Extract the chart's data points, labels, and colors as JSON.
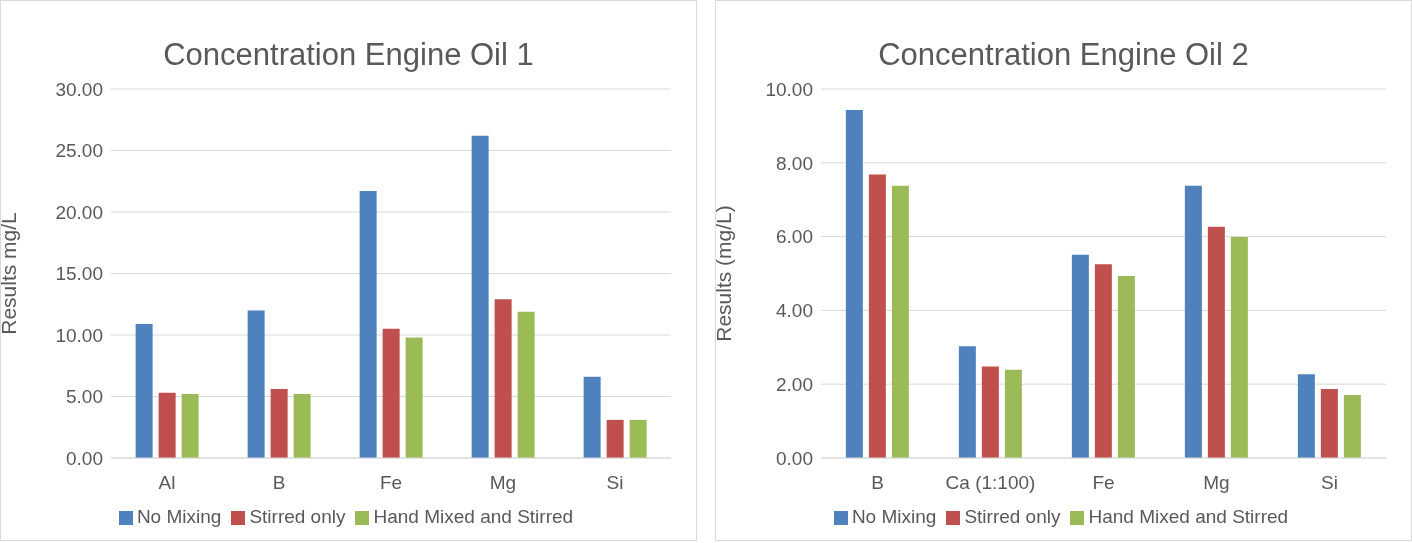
{
  "chart_data": [
    {
      "type": "bar",
      "title": "Concentration Engine Oil 1",
      "ylabel": "Results mg/L",
      "categories": [
        "Al",
        "B",
        "Fe",
        "Mg",
        "Si"
      ],
      "series": [
        {
          "name": "No Mixing",
          "color": "#4f81bd",
          "values": [
            10.9,
            12.0,
            21.7,
            26.2,
            6.6
          ]
        },
        {
          "name": "Stirred only",
          "color": "#c0504d",
          "values": [
            5.3,
            5.6,
            10.5,
            12.9,
            3.1
          ]
        },
        {
          "name": "Hand Mixed and Stirred",
          "color": "#9bbb59",
          "values": [
            5.2,
            5.2,
            9.8,
            11.9,
            3.1
          ]
        }
      ],
      "ylim": [
        0,
        30
      ],
      "yticks": [
        {
          "value": 0,
          "label": "0.00"
        },
        {
          "value": 5,
          "label": "5.00"
        },
        {
          "value": 10,
          "label": "10.00"
        },
        {
          "value": 15,
          "label": "15.00"
        },
        {
          "value": 20,
          "label": "20.00"
        },
        {
          "value": 25,
          "label": "25.00"
        },
        {
          "value": 30,
          "label": "30.00"
        }
      ],
      "grid": "y",
      "legend": "bottom"
    },
    {
      "type": "bar",
      "title": "Concentration Engine Oil 2",
      "ylabel": "Results (mg/L)",
      "categories": [
        "B",
        "Ca (1:100)",
        "Fe",
        "Mg",
        "Si"
      ],
      "series": [
        {
          "name": "No Mixing",
          "color": "#4f81bd",
          "values": [
            9.43,
            3.03,
            5.51,
            7.38,
            2.27
          ]
        },
        {
          "name": "Stirred only",
          "color": "#c0504d",
          "values": [
            7.68,
            2.48,
            5.25,
            6.27,
            1.87
          ]
        },
        {
          "name": "Hand Mixed and Stirred",
          "color": "#9bbb59",
          "values": [
            7.38,
            2.39,
            4.93,
            5.99,
            1.71
          ]
        }
      ],
      "ylim": [
        0,
        10
      ],
      "yticks": [
        {
          "value": 0,
          "label": "0.00"
        },
        {
          "value": 2,
          "label": "2.00"
        },
        {
          "value": 4,
          "label": "4.00"
        },
        {
          "value": 6,
          "label": "6.00"
        },
        {
          "value": 8,
          "label": "8.00"
        },
        {
          "value": 10,
          "label": "10.00"
        }
      ],
      "grid": "y",
      "legend": "bottom"
    }
  ]
}
